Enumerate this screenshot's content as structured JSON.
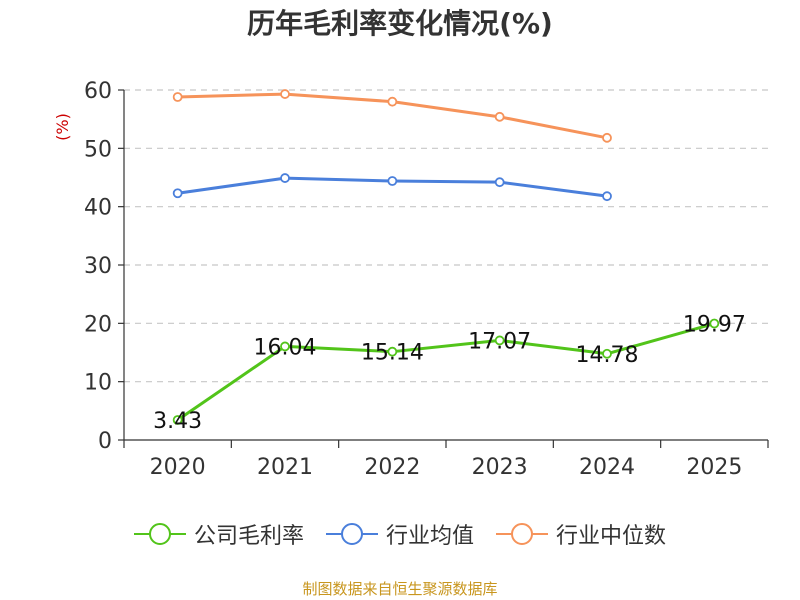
{
  "chart_data": {
    "type": "line",
    "title": "历年毛利率变化情况(%)",
    "ylabel": "(%)",
    "xlabel": "",
    "categories": [
      "2020",
      "2021",
      "2022",
      "2023",
      "2024",
      "2025"
    ],
    "ylim": [
      0,
      60
    ],
    "yticks": [
      0,
      10,
      20,
      30,
      40,
      50,
      60
    ],
    "grid": true,
    "legend_position": "bottom",
    "series": [
      {
        "name": "公司毛利率",
        "color": "#52c41a",
        "values": [
          3.43,
          16.04,
          15.14,
          17.07,
          14.78,
          19.97
        ],
        "labels": [
          "3.43",
          "16.04",
          "15.14",
          "17.07",
          "14.78",
          "19.97"
        ]
      },
      {
        "name": "行业均值",
        "color": "#4a7fdb",
        "values": [
          42.3,
          44.9,
          44.4,
          44.2,
          41.8,
          null
        ],
        "labels": null
      },
      {
        "name": "行业中位数",
        "color": "#f6935a",
        "values": [
          58.8,
          59.3,
          58.0,
          55.4,
          51.8,
          null
        ],
        "labels": null
      }
    ]
  },
  "footer": {
    "source": "制图数据来自恒生聚源数据库"
  }
}
